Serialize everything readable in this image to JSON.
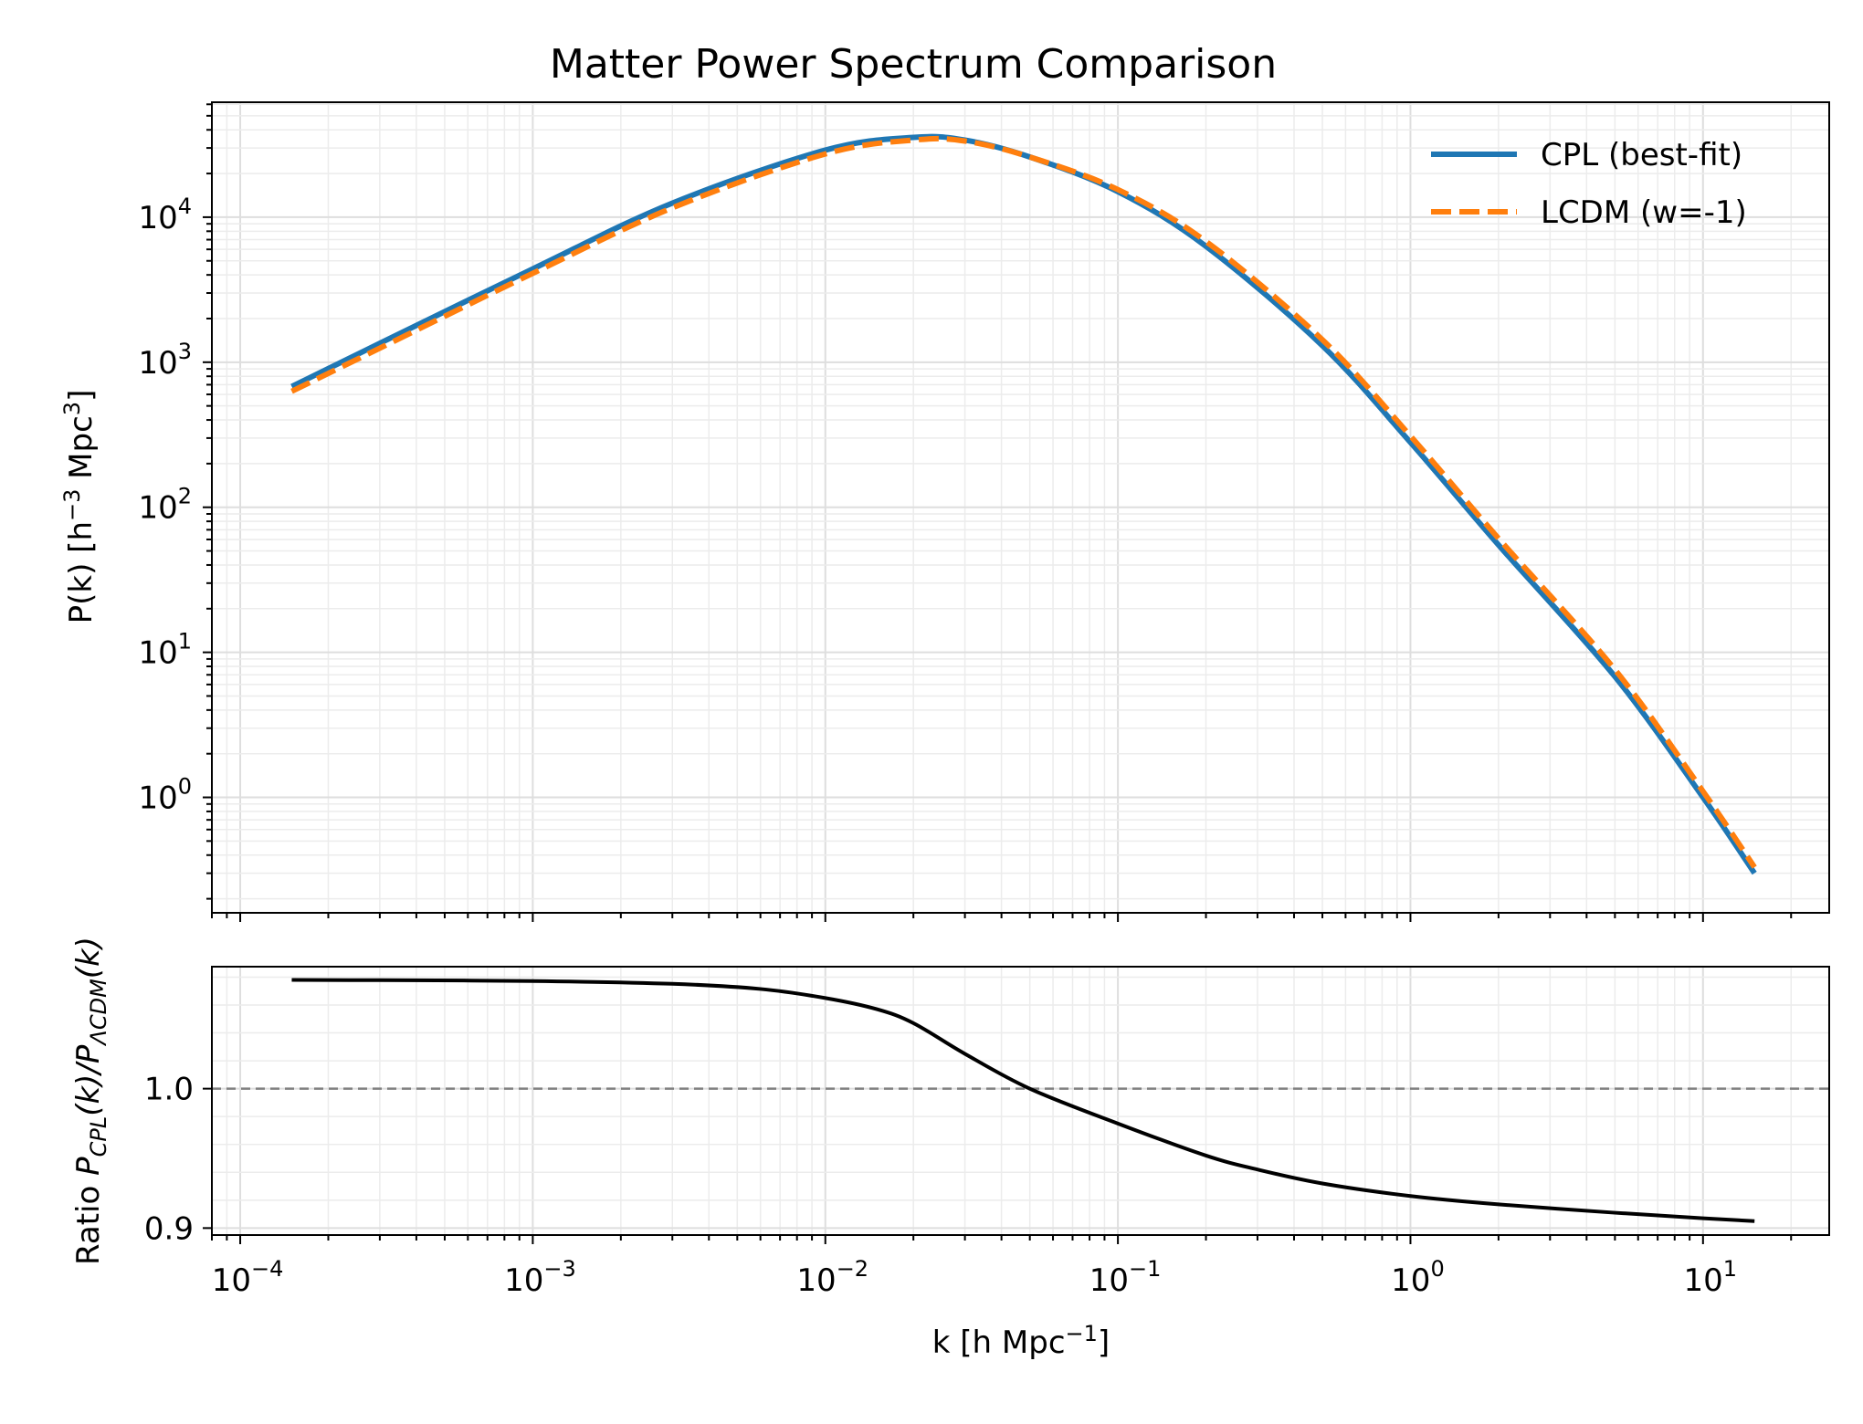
{
  "chart_data": [
    {
      "panel": "top",
      "type": "line",
      "title": "Matter Power Spectrum Comparison",
      "xscale": "log",
      "yscale": "log",
      "xlim": [
        8e-05,
        27
      ],
      "ylim": [
        0.16,
        62000
      ],
      "ylabel": {
        "base": "P(k) [h",
        "sup1": "−3",
        "mid": " Mpc",
        "sup2": "3",
        "end": "]"
      },
      "yticks": [
        {
          "value": 1,
          "base": "10",
          "exp": "0"
        },
        {
          "value": 10,
          "base": "10",
          "exp": "1"
        },
        {
          "value": 100,
          "base": "10",
          "exp": "2"
        },
        {
          "value": 1000,
          "base": "10",
          "exp": "3"
        },
        {
          "value": 10000,
          "base": "10",
          "exp": "4"
        }
      ],
      "grid": true,
      "legend": {
        "position": "top-right"
      },
      "series": [
        {
          "name": "CPL (best-fit)",
          "color": "#1f77b4",
          "style": "solid",
          "x": [
            0.00015,
            0.0003,
            0.001,
            0.003,
            0.01,
            0.02,
            0.03,
            0.05,
            0.1,
            0.2,
            0.5,
            1,
            2,
            5,
            10,
            15
          ],
          "y": [
            680,
            1350,
            4400,
            12500,
            29000,
            35500,
            34000,
            26000,
            15000,
            6300,
            1300,
            280,
            55,
            6.8,
            1.0,
            0.3
          ]
        },
        {
          "name": "LCDM (w=-1)",
          "color": "#ff7f0e",
          "style": "dashed",
          "x": [
            0.00015,
            0.0003,
            0.001,
            0.003,
            0.01,
            0.02,
            0.03,
            0.05,
            0.1,
            0.2,
            0.5,
            1,
            2,
            5,
            10,
            15
          ],
          "y": [
            630,
            1250,
            4100,
            11600,
            27300,
            34000,
            33500,
            26000,
            15500,
            6800,
            1430,
            310,
            61,
            7.6,
            1.1,
            0.33
          ]
        }
      ]
    },
    {
      "panel": "bottom",
      "type": "line",
      "xscale": "log",
      "yscale": "linear",
      "xlim": [
        8e-05,
        27
      ],
      "ylim": [
        0.895,
        1.0875
      ],
      "xlabel": {
        "base": "k [h Mpc",
        "sup": "−1",
        "end": "]"
      },
      "ylabel": {
        "pre": "Ratio ",
        "p1": "P",
        "sub1": "CPL",
        "mid": "(k)/",
        "p2": "P",
        "sub2": "ΛCDM",
        "end": "(k)"
      },
      "yticks": [
        {
          "value": 0.9,
          "label": "0.9"
        },
        {
          "value": 1.0,
          "label": "1.0"
        }
      ],
      "xticks": [
        {
          "value": 0.0001,
          "base": "10",
          "exp": "−4"
        },
        {
          "value": 0.001,
          "base": "10",
          "exp": "−3"
        },
        {
          "value": 0.01,
          "base": "10",
          "exp": "−2"
        },
        {
          "value": 0.1,
          "base": "10",
          "exp": "−1"
        },
        {
          "value": 1,
          "base": "10",
          "exp": "0"
        },
        {
          "value": 10,
          "base": "10",
          "exp": "1"
        }
      ],
      "reference_line": {
        "y": 1.0,
        "color": "#808080",
        "style": "dashed"
      },
      "grid": true,
      "series": [
        {
          "name": "ratio",
          "color": "#000000",
          "style": "solid",
          "x": [
            0.00015,
            0.0003,
            0.001,
            0.003,
            0.006,
            0.01,
            0.015,
            0.02,
            0.03,
            0.05,
            0.1,
            0.2,
            0.3,
            0.5,
            1,
            2,
            5,
            10,
            15
          ],
          "y": [
            1.078,
            1.0778,
            1.0772,
            1.0752,
            1.0715,
            1.065,
            1.057,
            1.047,
            1.025,
            1.0,
            0.975,
            0.952,
            0.942,
            0.932,
            0.923,
            0.917,
            0.911,
            0.907,
            0.905
          ]
        }
      ]
    }
  ]
}
